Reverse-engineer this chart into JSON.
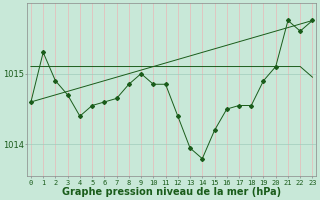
{
  "hours": [
    0,
    1,
    2,
    3,
    4,
    5,
    6,
    7,
    8,
    9,
    10,
    11,
    12,
    13,
    14,
    15,
    16,
    17,
    18,
    19,
    20,
    21,
    22,
    23
  ],
  "main_line": [
    1014.6,
    1015.3,
    1014.9,
    1014.7,
    1014.4,
    1014.55,
    1014.6,
    1014.65,
    1014.85,
    1015.0,
    1014.85,
    1014.85,
    1014.4,
    1013.95,
    1013.8,
    1014.2,
    1014.5,
    1014.55,
    1014.55,
    1014.9,
    1015.1,
    1015.75,
    1015.6,
    1015.75
  ],
  "trend_line1": [
    1015.1,
    1015.1,
    1015.1,
    1015.1,
    1015.1,
    1015.1,
    1015.1,
    1015.1,
    1015.1,
    1015.1,
    1015.1,
    1015.1,
    1015.1,
    1015.1,
    1015.1,
    1015.1,
    1015.1,
    1015.1,
    1015.1,
    1015.1,
    1015.1,
    1015.1,
    1015.1,
    1014.95
  ],
  "trend_line2": [
    1014.6,
    1014.65,
    1014.7,
    1014.75,
    1014.8,
    1014.85,
    1014.9,
    1014.95,
    1015.0,
    1015.05,
    1015.1,
    1015.15,
    1015.2,
    1015.25,
    1015.3,
    1015.35,
    1015.4,
    1015.45,
    1015.5,
    1015.55,
    1015.6,
    1015.65,
    1015.7,
    1015.75
  ],
  "bg_color": "#c8e8d8",
  "line_color": "#1a5c1a",
  "vgrid_color": "#e8b8b8",
  "hgrid_color": "#a0ccbc",
  "tick_color": "#1a5c1a",
  "title": "Graphe pression niveau de la mer (hPa)",
  "ylim": [
    1013.55,
    1016.0
  ],
  "yticks": [
    1014.0,
    1015.0
  ],
  "title_fontsize": 7,
  "tick_fontsize": 5
}
